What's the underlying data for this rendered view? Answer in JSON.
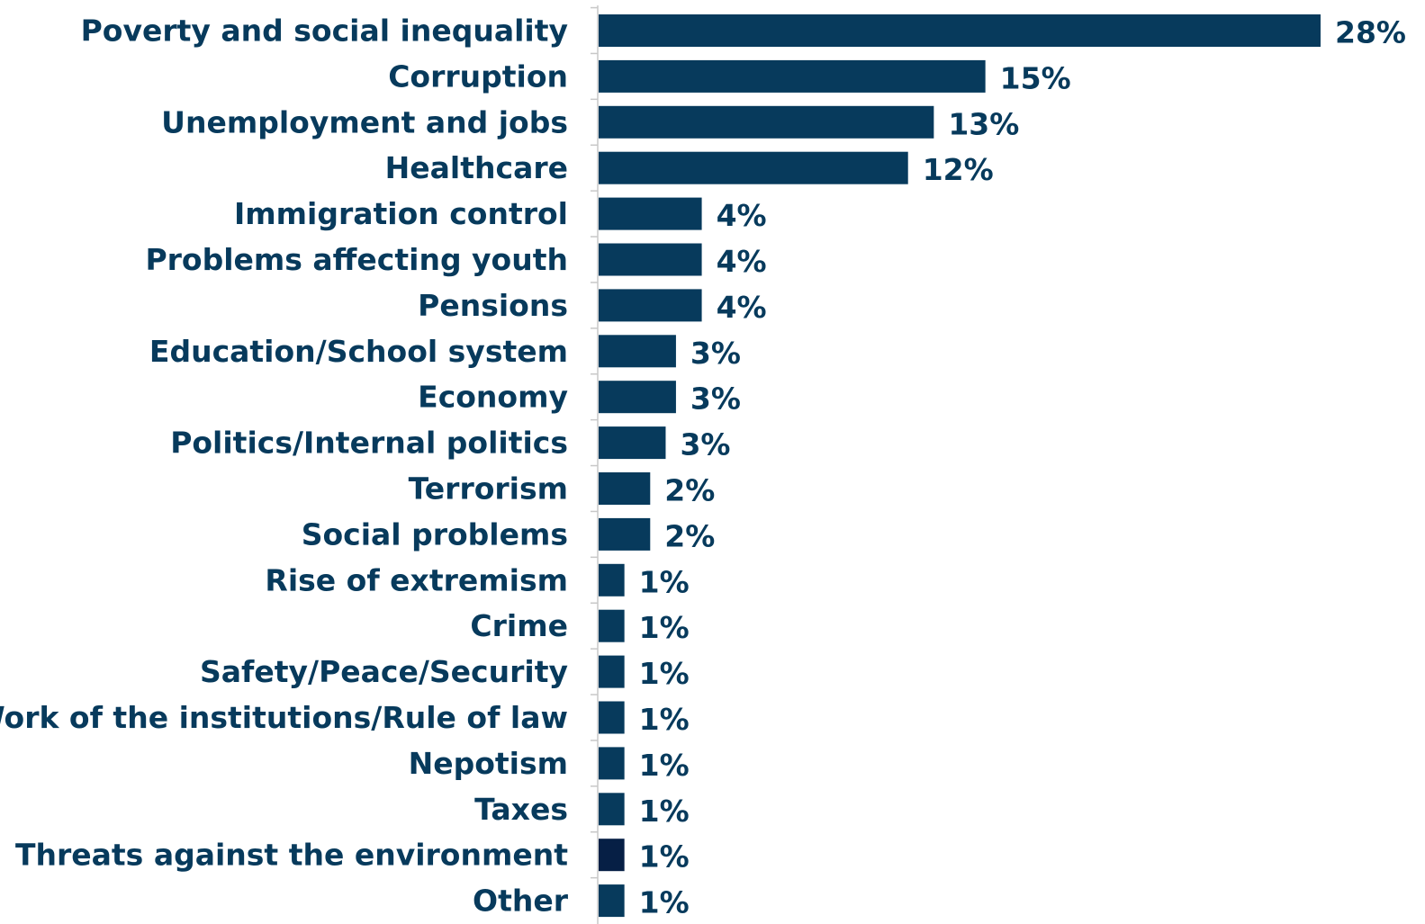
{
  "chart_data": {
    "type": "bar",
    "orientation": "horizontal",
    "categories": [
      "Poverty and social inequality",
      "Corruption",
      "Unemployment and jobs",
      "Healthcare",
      "Immigration control",
      "Problems affecting youth",
      "Pensions",
      "Education/School system",
      "Economy",
      "Politics/Internal politics",
      "Terrorism",
      "Social problems",
      "Rise of extremism",
      "Crime",
      "Safety/Peace/Security",
      "Work of the institutions/Rule of law",
      "Nepotism",
      "Taxes",
      "Threats against the environment",
      "Other"
    ],
    "values": [
      28,
      15,
      13,
      12,
      4,
      4,
      4,
      3,
      3,
      3,
      2,
      2,
      1,
      1,
      1,
      1,
      1,
      1,
      1,
      1
    ],
    "value_labels": [
      "28%",
      "15%",
      "13%",
      "12%",
      "4%",
      "4%",
      "4%",
      "3%",
      "3%",
      "3%",
      "2%",
      "2%",
      "1%",
      "1%",
      "1%",
      "1%",
      "1%",
      "1%",
      "1%",
      "1%"
    ],
    "bar_values_precise": [
      28,
      15,
      13,
      12,
      4,
      4,
      4,
      3,
      3,
      2.6,
      2,
      2,
      1,
      1,
      1,
      1,
      1,
      1,
      1,
      1
    ],
    "xlim": [
      0,
      28
    ],
    "grid": false,
    "legend": "none",
    "colors": {
      "bar": "#073a5c",
      "bar_highlight": "#061f45",
      "text": "#073a5c",
      "axis": "#c8c8c8"
    },
    "highlight_index": 18
  }
}
